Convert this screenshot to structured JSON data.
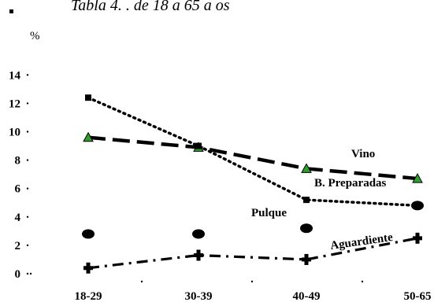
{
  "chart_data": {
    "type": "line",
    "title": "Tabla 4.  . de 18 a 65 a  os",
    "ylabel": "%",
    "ylim": [
      0,
      14
    ],
    "yticks": [
      "0",
      "2",
      "4",
      "6",
      "8",
      "10",
      "12",
      "14"
    ],
    "categories": [
      "18-29",
      "30-39",
      "40-49",
      "50-65"
    ],
    "grid": false,
    "series": [
      {
        "name": "Vino",
        "values": [
          9.6,
          8.9,
          7.4,
          6.7
        ],
        "color": "#000000",
        "marker_color": "#2e9e2e",
        "dash": "long-dash",
        "marker": "triangle"
      },
      {
        "name": "B. Preparadas",
        "values": [
          12.4,
          9.0,
          5.2,
          4.8
        ],
        "color": "#000000",
        "dash": "dotted",
        "marker": "square"
      },
      {
        "name": "Pulque",
        "values": [
          2.8,
          2.8,
          3.2,
          4.8
        ],
        "color": "#000000",
        "dash": "none",
        "marker": "ellipse"
      },
      {
        "name": "Aguardiente",
        "values": [
          0.4,
          1.3,
          1.0,
          2.5
        ],
        "color": "#000000",
        "dash": "dash-dot",
        "marker": "cross"
      }
    ]
  }
}
